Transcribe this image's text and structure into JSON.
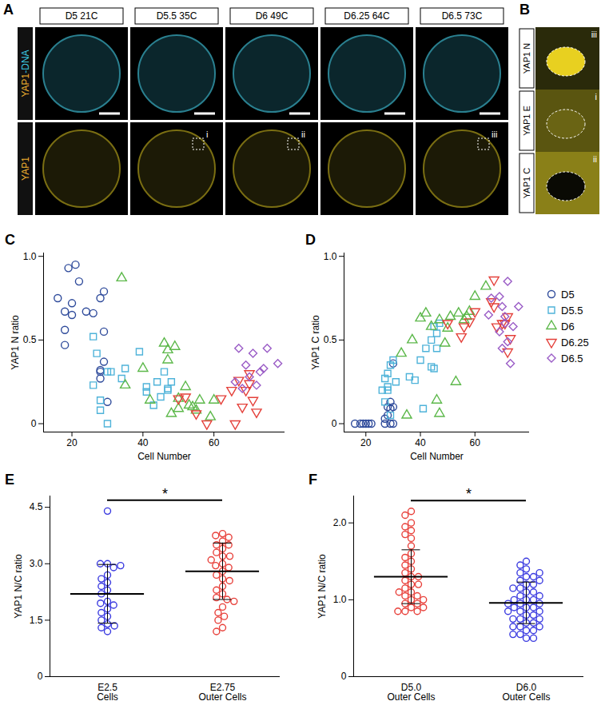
{
  "image_panels": {
    "A": {
      "panel": "A",
      "columns": [
        "D5 21C",
        "D5.5 35C",
        "D6 49C",
        "D6.25 64C",
        "D6.5 73C"
      ],
      "rows": [
        "YAP1-DNA",
        "YAP1"
      ],
      "insets": [
        {
          "column": 1,
          "label": "i"
        },
        {
          "column": 2,
          "label": "ii"
        },
        {
          "column": 4,
          "label": "iii"
        }
      ]
    },
    "B": {
      "panel": "B",
      "tiles": [
        {
          "label": "YAP1 N",
          "inset": "iii"
        },
        {
          "label": "YAP1 E",
          "inset": "i"
        },
        {
          "label": "YAP1 C",
          "inset": "ii"
        }
      ]
    }
  },
  "chart_data": [
    {
      "panel": "C",
      "type": "scatter",
      "x_label": "Cell Number",
      "y_label": "YAP1 N ratio",
      "xlim": [
        12,
        80
      ],
      "xticks": [
        20,
        40,
        60
      ],
      "ylim": [
        -0.05,
        1.02
      ],
      "yticks": [
        0,
        0.5,
        {
          "value": 1,
          "label": "1.0"
        }
      ],
      "series": [
        {
          "name": "D5",
          "color": "#2f4b9b",
          "marker": "circle",
          "x": [
            16,
            18,
            18,
            18,
            19,
            20,
            20,
            21,
            22,
            24,
            26,
            28,
            29,
            29,
            28,
            28,
            29,
            30,
            28
          ],
          "values": [
            0.75,
            0.47,
            0.56,
            0.67,
            0.93,
            0.72,
            0.65,
            0.95,
            0.85,
            0.67,
            0.66,
            0.75,
            0.79,
            0.55,
            0.31,
            0.27,
            0.37,
            0.13,
            0.32
          ]
        },
        {
          "name": "D5.5",
          "color": "#4fb3d9",
          "marker": "square",
          "x": [
            26,
            26,
            27,
            28,
            28,
            30,
            30,
            31,
            34,
            35,
            39,
            41,
            41,
            44,
            43,
            45,
            47,
            47,
            46,
            48
          ],
          "values": [
            0.23,
            0.52,
            0.42,
            0.14,
            0.08,
            0.0,
            0.31,
            0.31,
            0.27,
            0.33,
            0.43,
            0.19,
            0.22,
            0.25,
            0.11,
            0.16,
            0.21,
            0.2,
            0.31,
            0.25
          ]
        },
        {
          "name": "D6",
          "color": "#5cb84a",
          "marker": "triangle",
          "x": [
            34,
            35,
            40,
            42,
            46,
            47,
            47,
            48,
            49,
            50,
            50,
            52,
            53,
            54,
            55,
            56,
            59,
            60
          ],
          "values": [
            0.87,
            0.23,
            0.33,
            0.14,
            0.48,
            0.38,
            0.44,
            0.06,
            0.46,
            0.15,
            0.09,
            0.22,
            0.11,
            0.1,
            0.08,
            0.14,
            0.04,
            0.14
          ]
        },
        {
          "name": "D6.25",
          "color": "#e4403a",
          "marker": "triangle-down",
          "x": [
            50,
            52,
            55,
            58,
            62,
            65,
            66,
            67,
            68,
            69,
            70,
            71,
            72,
            70
          ],
          "values": [
            0.15,
            0.16,
            0.06,
            0.0,
            0.15,
            0.2,
            0.0,
            0.26,
            0.1,
            0.2,
            0.3,
            0.14,
            0.07,
            0.24
          ]
        },
        {
          "name": "D6.5",
          "color": "#9a5cc6",
          "marker": "diamond",
          "x": [
            67,
            66,
            69,
            70,
            71,
            73,
            74,
            75,
            78,
            72,
            68
          ],
          "values": [
            0.45,
            0.25,
            0.35,
            0.28,
            0.42,
            0.31,
            0.33,
            0.45,
            0.36,
            0.23,
            0.21
          ]
        }
      ]
    },
    {
      "panel": "D",
      "type": "scatter",
      "x_label": "Cell Number",
      "y_label": "YAP1 C ratio",
      "legend": "right",
      "xlim": [
        12,
        80
      ],
      "xticks": [
        20,
        40,
        60
      ],
      "ylim": [
        -0.05,
        1.02
      ],
      "yticks": [
        0,
        0.5,
        {
          "value": 1,
          "label": "1.0"
        }
      ],
      "series": [
        {
          "name": "D5",
          "color": "#2f4b9b",
          "marker": "circle",
          "x": [
            16,
            18,
            19,
            20,
            21,
            22,
            27,
            27,
            28,
            28,
            29,
            29,
            30,
            30,
            29,
            30
          ],
          "values": [
            0,
            0,
            0,
            0,
            0,
            0,
            0,
            0.03,
            0.1,
            0.05,
            0.13,
            0.09,
            0.1,
            0.36,
            0,
            0
          ]
        },
        {
          "name": "D5.5",
          "color": "#4fb3d9",
          "marker": "square",
          "x": [
            26,
            27,
            27,
            28,
            28,
            28,
            29,
            29,
            30,
            31,
            36,
            38,
            40,
            41,
            42,
            44,
            45,
            45,
            46,
            46,
            47,
            44
          ],
          "values": [
            0.2,
            0.13,
            0.27,
            0.3,
            0.22,
            0.2,
            0.05,
            0.35,
            0.38,
            0.25,
            0.28,
            0.26,
            0.38,
            0.09,
            0.45,
            0.34,
            0.33,
            0.58,
            0.54,
            0.45,
            0.6,
            0.5
          ]
        },
        {
          "name": "D6",
          "color": "#5cb84a",
          "marker": "triangle",
          "x": [
            33,
            35,
            37,
            40,
            42,
            44,
            46,
            47,
            47,
            49,
            50,
            51,
            53,
            54,
            56,
            57,
            58,
            60,
            64
          ],
          "values": [
            0.42,
            0.05,
            0.5,
            0.63,
            0.66,
            0.58,
            0.14,
            0.06,
            0.62,
            0.48,
            0.57,
            0.64,
            0.25,
            0.66,
            0.62,
            0.64,
            0.67,
            0.76,
            0.82
          ]
        },
        {
          "name": "D6.25",
          "color": "#e4403a",
          "marker": "triangle-down",
          "x": [
            50,
            55,
            56,
            58,
            60,
            66,
            67,
            67,
            68,
            70,
            71,
            72,
            73,
            72
          ],
          "values": [
            0.6,
            0.52,
            0.58,
            0.61,
            0.67,
            0.73,
            0.86,
            0.7,
            0.58,
            0.6,
            0.6,
            0.43,
            0.51,
            0.64
          ]
        },
        {
          "name": "D6.5",
          "color": "#9a5cc6",
          "marker": "diamond",
          "x": [
            65,
            66,
            69,
            70,
            71,
            72,
            72,
            73,
            74,
            76,
            69,
            70,
            71
          ],
          "values": [
            0.65,
            0.75,
            0.76,
            0.7,
            0.64,
            0.85,
            0.49,
            0.36,
            0.58,
            0.7,
            0.55,
            0.45,
            0.6
          ]
        }
      ]
    },
    {
      "panel": "E",
      "type": "strip",
      "y_label": "YAP1 N/C ratio",
      "categories": [
        "E2.5 Cells",
        "E2.75 Outer Cells"
      ],
      "colors": [
        "#3b3be0",
        "#e8403a"
      ],
      "ylim": [
        0,
        4.8
      ],
      "yticks": [
        0,
        1.5,
        {
          "value": 3,
          "label": "3.0"
        },
        4.5
      ],
      "values": [
        [
          4.4,
          3.0,
          3.0,
          2.9,
          2.95,
          2.7,
          2.6,
          2.5,
          2.4,
          2.3,
          2.2,
          2.0,
          1.95,
          1.9,
          1.8,
          1.7,
          1.6,
          1.5,
          1.4,
          1.3,
          1.2,
          1.35
        ],
        [
          3.8,
          3.75,
          3.7,
          3.6,
          3.5,
          3.5,
          3.4,
          3.3,
          3.2,
          3.2,
          3.0,
          2.95,
          2.9,
          2.8,
          2.7,
          2.6,
          2.55,
          2.4,
          2.3,
          2.2,
          2.1,
          2.05,
          2.0,
          1.85,
          1.7,
          1.6,
          1.5,
          1.3,
          1.2,
          3.1
        ]
      ],
      "means": [
        2.2,
        2.8
      ],
      "sd": [
        0.78,
        0.75
      ],
      "significance": "*"
    },
    {
      "panel": "F",
      "type": "strip",
      "y_label": "YAP1 N/C ratio",
      "categories": [
        "D5.0 Outer Cells",
        "D6.0 Outer Cells"
      ],
      "colors": [
        "#e8403a",
        "#3b3be0"
      ],
      "ylim": [
        0,
        2.35
      ],
      "yticks": [
        0,
        {
          "value": 1,
          "label": "1.0"
        },
        {
          "value": 2,
          "label": "2.0"
        }
      ],
      "values": [
        [
          2.15,
          2.1,
          2.0,
          1.95,
          1.9,
          1.85,
          1.8,
          1.7,
          1.6,
          1.55,
          1.5,
          1.45,
          1.4,
          1.35,
          1.3,
          1.3,
          1.25,
          1.2,
          1.2,
          1.15,
          1.1,
          1.05,
          1.05,
          1.0,
          1.0,
          0.95,
          0.95,
          0.9,
          0.9,
          0.85,
          0.85,
          0.85,
          1.1
        ],
        [
          1.5,
          1.45,
          1.4,
          1.35,
          1.3,
          1.3,
          1.25,
          1.2,
          1.2,
          1.15,
          1.1,
          1.1,
          1.05,
          1.0,
          1.0,
          1.0,
          0.95,
          0.95,
          0.9,
          0.9,
          0.9,
          0.85,
          0.85,
          0.8,
          0.8,
          0.75,
          0.75,
          0.7,
          0.7,
          0.65,
          0.65,
          0.6,
          0.6,
          0.55,
          0.55,
          0.5,
          0.5,
          1.25,
          1.15,
          1.05,
          0.95,
          0.85,
          0.75,
          0.65,
          1.35
        ]
      ],
      "means": [
        1.3,
        0.96
      ],
      "sd": [
        0.35,
        0.27
      ],
      "significance": "*"
    }
  ]
}
